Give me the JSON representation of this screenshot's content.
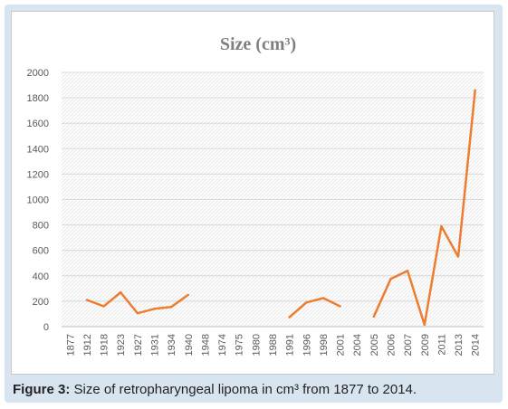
{
  "chart_data": {
    "type": "line",
    "title": "Size (cm³)",
    "categories": [
      "1877",
      "1912",
      "1918",
      "1923",
      "1927",
      "1931",
      "1934",
      "1940",
      "1948",
      "1974",
      "1975",
      "1980",
      "1988",
      "1991",
      "1996",
      "1998",
      "2001",
      "2004",
      "2005",
      "2006",
      "2007",
      "2009",
      "2011",
      "2013",
      "2014"
    ],
    "series": [
      {
        "values": [
          null,
          210,
          160,
          270,
          105,
          140,
          155,
          250,
          null,
          null,
          null,
          null,
          null,
          75,
          190,
          225,
          160,
          null,
          80,
          375,
          440,
          15,
          790,
          550,
          1860
        ]
      }
    ],
    "ylim": [
      0,
      2000
    ],
    "yticks": [
      0,
      200,
      400,
      600,
      800,
      1000,
      1200,
      1400,
      1600,
      1800,
      2000
    ],
    "grid": true,
    "line_color": "#ed7d31"
  },
  "caption": {
    "label": "Figure 3:",
    "text": " Size of retropharyngeal lipoma in cm³ from 1877 to 2014."
  }
}
